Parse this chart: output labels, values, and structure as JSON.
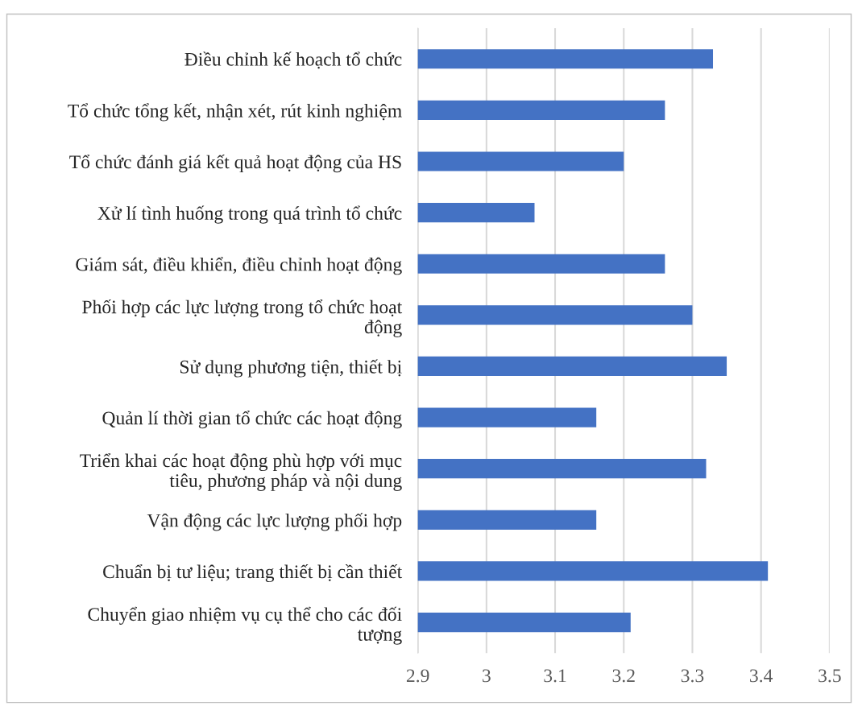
{
  "chart_data": {
    "type": "bar",
    "orientation": "horizontal",
    "categories": [
      "Điều chỉnh kế hoạch tổ chức",
      "Tổ chức tổng kết, nhận xét, rút kinh nghiệm",
      "Tổ chức đánh giá kết quả hoạt động của HS",
      "Xử lí tình huống trong quá trình tổ chức",
      "Giám sát, điều khiển, điều chỉnh hoạt động",
      "Phối hợp các lực lượng trong tổ chức hoạt động",
      "Sử dụng phương tiện, thiết bị",
      "Quản lí thời gian tổ chức các hoạt động",
      "Triển khai các hoạt động phù hợp với mục tiêu, phương pháp và nội dung",
      "Vận động các lực lượng phối hợp",
      "Chuẩn bị tư liệu; trang thiết bị cần thiết",
      "Chuyển giao nhiệm vụ cụ thể cho các đối tượng"
    ],
    "values": [
      3.33,
      3.26,
      3.2,
      3.07,
      3.26,
      3.3,
      3.35,
      3.16,
      3.32,
      3.16,
      3.41,
      3.21
    ],
    "color": "#4472c4",
    "xlim": [
      2.9,
      3.5
    ],
    "xticks": [
      2.9,
      3,
      3.1,
      3.2,
      3.3,
      3.4,
      3.5
    ],
    "grid": "x",
    "legend": false
  }
}
